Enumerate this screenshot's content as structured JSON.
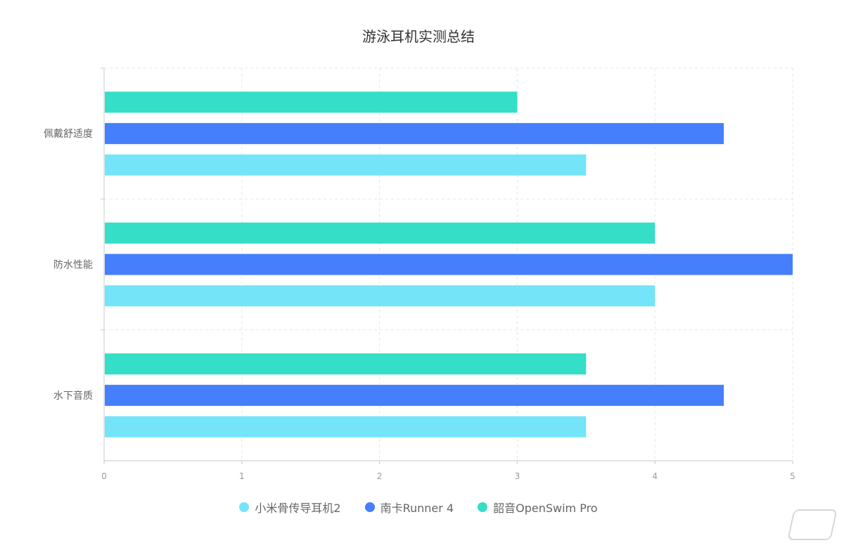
{
  "chart_data": {
    "type": "bar",
    "orientation": "horizontal",
    "title": "游泳耳机实测总结",
    "categories": [
      "佩戴舒适度",
      "防水性能",
      "水下音质"
    ],
    "series": [
      {
        "name": "小米骨传导耳机2",
        "color": "#74e4f9",
        "values": [
          3.5,
          4,
          3.5
        ]
      },
      {
        "name": "南卡Runner 4",
        "color": "#457ffc",
        "values": [
          4.5,
          5,
          4.5
        ]
      },
      {
        "name": "韶音OpenSwim Pro",
        "color": "#35dec6",
        "values": [
          3,
          4,
          3.5
        ]
      }
    ],
    "xlim": [
      0,
      5
    ],
    "xticks": [
      0,
      1,
      2,
      3,
      4,
      5
    ],
    "grid": true,
    "legend_position": "bottom"
  }
}
